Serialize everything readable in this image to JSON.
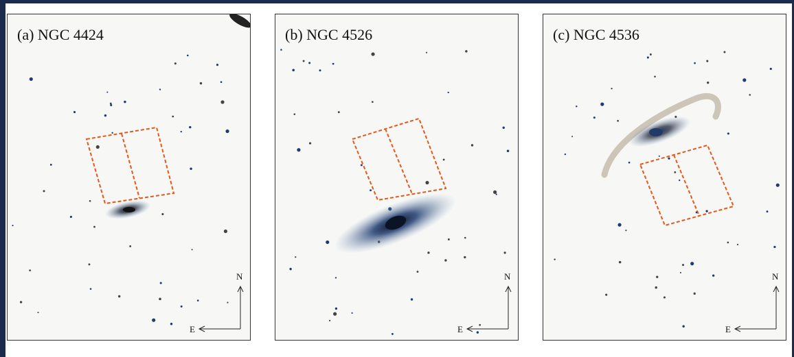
{
  "panels": [
    {
      "label": "(a) NGC 4424",
      "north": "N",
      "east": "E"
    },
    {
      "label": "(b) NGC 4526",
      "north": "N",
      "east": "E"
    },
    {
      "label": "(c) NGC 4536",
      "north": "N",
      "east": "E"
    }
  ]
}
